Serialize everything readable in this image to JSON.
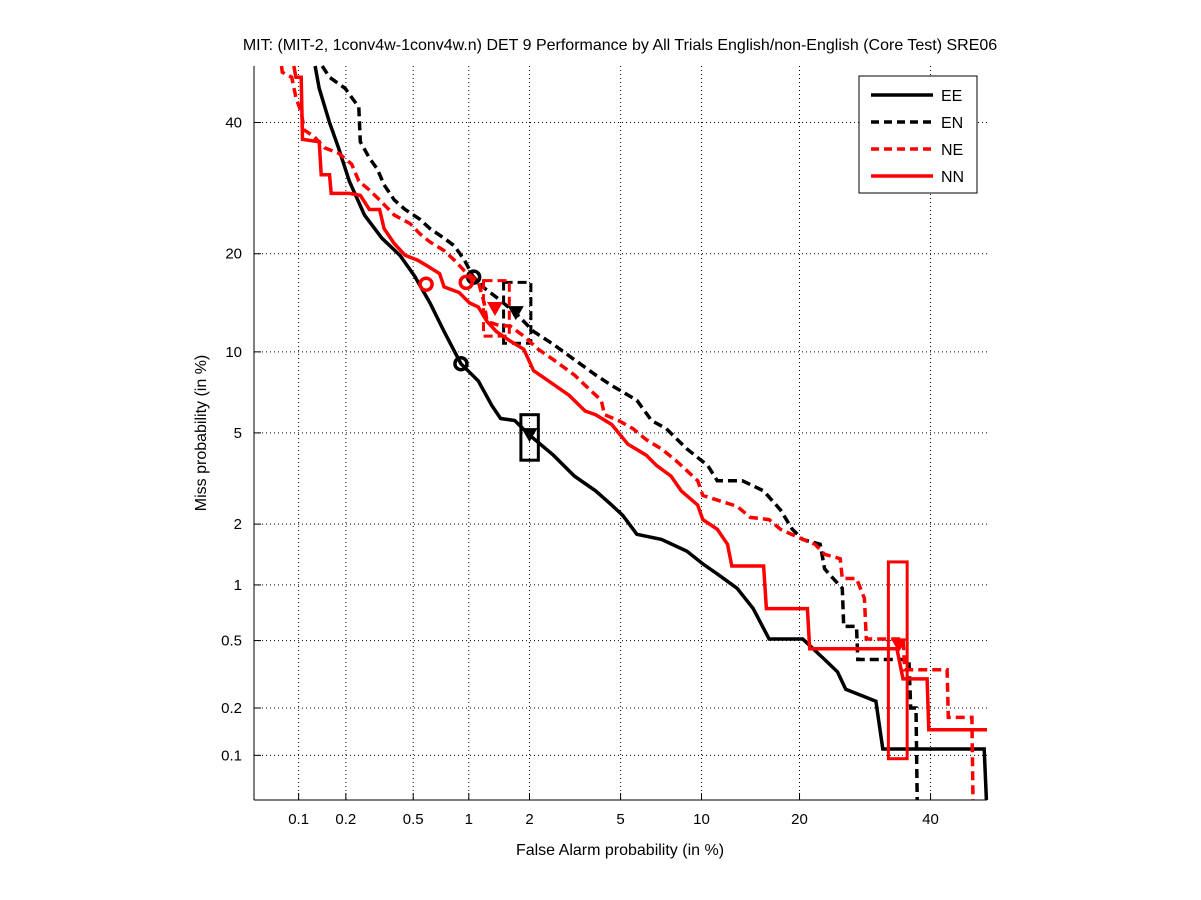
{
  "chart_data": {
    "type": "line",
    "title": "MIT: (MIT-2, 1conv4w-1conv4w.n) DET 9 Performance by All Trials English/non-English (Core Test) SRE06",
    "xlabel": "False Alarm probability (in %)",
    "ylabel": "Miss probability (in %)",
    "xscale": "probit",
    "yscale": "probit",
    "xlim": [
      0.05,
      50
    ],
    "ylim": [
      0.05,
      50
    ],
    "xticks": [
      0.1,
      0.2,
      0.5,
      1,
      2,
      5,
      10,
      20,
      40
    ],
    "xtick_labels": [
      "0.1",
      "0.2",
      "0.5",
      "1",
      "2",
      "5",
      "10",
      "20",
      "40"
    ],
    "yticks": [
      0.1,
      0.2,
      0.5,
      1,
      2,
      5,
      10,
      20,
      40
    ],
    "ytick_labels": [
      "0.1",
      "0.2",
      "0.5",
      "1",
      "2",
      "5",
      "10",
      "20",
      "40"
    ],
    "grid": true,
    "legend_position": "top-right",
    "series": [
      {
        "name": "EE",
        "color": "#000000",
        "dashed": false,
        "points": [
          [
            0.128,
            50
          ],
          [
            0.136,
            46
          ],
          [
            0.158,
            40
          ],
          [
            0.18,
            35.7
          ],
          [
            0.21,
            30.3
          ],
          [
            0.26,
            25.2
          ],
          [
            0.33,
            22
          ],
          [
            0.42,
            19.8
          ],
          [
            0.51,
            17.3
          ],
          [
            0.62,
            14.4
          ],
          [
            0.74,
            11.7
          ],
          [
            0.91,
            9.1
          ],
          [
            1.12,
            7.9
          ],
          [
            1.31,
            6.4
          ],
          [
            1.45,
            5.7
          ],
          [
            1.7,
            5.6
          ],
          [
            2,
            4.9
          ],
          [
            2.58,
            4.05
          ],
          [
            3.2,
            3.3
          ],
          [
            3.95,
            2.84
          ],
          [
            4.6,
            2.45
          ],
          [
            5.1,
            2.2
          ],
          [
            5.8,
            1.79
          ],
          [
            7.2,
            1.69
          ],
          [
            8.9,
            1.48
          ],
          [
            10.1,
            1.28
          ],
          [
            11.3,
            1.14
          ],
          [
            13.1,
            0.96
          ],
          [
            14.7,
            0.75
          ],
          [
            16.4,
            0.51
          ],
          [
            20.4,
            0.51
          ],
          [
            23.3,
            0.39
          ],
          [
            25.1,
            0.33
          ],
          [
            26.3,
            0.26
          ],
          [
            30.9,
            0.22
          ],
          [
            32,
            0.11
          ],
          [
            49.5,
            0.11
          ],
          [
            49.9,
            0.05
          ]
        ],
        "min_dcf": [
          0.91,
          9.1
        ],
        "act_dcf": [
          2.0,
          4.9
        ],
        "conf_box": {
          "x": [
            1.82,
            2.2
          ],
          "y": [
            3.86,
            5.9
          ]
        }
      },
      {
        "name": "EN",
        "color": "#000000",
        "dashed": true,
        "points": [
          [
            0.142,
            50
          ],
          [
            0.158,
            48
          ],
          [
            0.198,
            46
          ],
          [
            0.217,
            44.4
          ],
          [
            0.24,
            42.7
          ],
          [
            0.245,
            36.7
          ],
          [
            0.278,
            34
          ],
          [
            0.31,
            32.2
          ],
          [
            0.34,
            29.7
          ],
          [
            0.39,
            27.4
          ],
          [
            0.45,
            26
          ],
          [
            0.545,
            24.6
          ],
          [
            0.62,
            23.3
          ],
          [
            0.74,
            22
          ],
          [
            0.84,
            21
          ],
          [
            0.95,
            19.2
          ],
          [
            1.05,
            17.3
          ],
          [
            1.18,
            16.1
          ],
          [
            1.38,
            15
          ],
          [
            1.7,
            13.5
          ],
          [
            2.09,
            11.7
          ],
          [
            2.58,
            10.6
          ],
          [
            3.2,
            9.4
          ],
          [
            3.95,
            8.3
          ],
          [
            4.6,
            7.6
          ],
          [
            5.8,
            6.7
          ],
          [
            6.6,
            5.6
          ],
          [
            7.5,
            5.2
          ],
          [
            8.9,
            4.3
          ],
          [
            10.5,
            3.66
          ],
          [
            11.3,
            3.15
          ],
          [
            13.6,
            3.15
          ],
          [
            15.8,
            2.84
          ],
          [
            17.7,
            2.33
          ],
          [
            19.1,
            1.89
          ],
          [
            20.4,
            1.69
          ],
          [
            22.7,
            1.6
          ],
          [
            23.3,
            1.21
          ],
          [
            24.5,
            1.08
          ],
          [
            25.8,
            0.96
          ],
          [
            26,
            0.6
          ],
          [
            27.9,
            0.6
          ],
          [
            28.1,
            0.39
          ],
          [
            36.3,
            0.39
          ],
          [
            36.6,
            0.2
          ],
          [
            37.5,
            0.2
          ],
          [
            37.7,
            0.05
          ]
        ],
        "min_dcf": [
          1.06,
          17.2
        ],
        "act_dcf": [
          1.72,
          13.4
        ],
        "conf_box": {
          "x": [
            1.5,
            2.03
          ],
          "y": [
            10.7,
            16.6
          ]
        }
      },
      {
        "name": "NE",
        "color": "#ff0000",
        "dashed": true,
        "points": [
          [
            0.077,
            50
          ],
          [
            0.078,
            48.9
          ],
          [
            0.09,
            48
          ],
          [
            0.096,
            44.4
          ],
          [
            0.101,
            42.7
          ],
          [
            0.104,
            41.8
          ],
          [
            0.109,
            38.7
          ],
          [
            0.126,
            37.6
          ],
          [
            0.147,
            35.7
          ],
          [
            0.18,
            34.8
          ],
          [
            0.217,
            33
          ],
          [
            0.24,
            30.3
          ],
          [
            0.278,
            28.9
          ],
          [
            0.32,
            27.4
          ],
          [
            0.39,
            25.2
          ],
          [
            0.48,
            24
          ],
          [
            0.545,
            22.6
          ],
          [
            0.62,
            21.5
          ],
          [
            0.74,
            20.4
          ],
          [
            0.84,
            19.2
          ],
          [
            0.95,
            17.9
          ],
          [
            1.12,
            16.7
          ],
          [
            1.2,
            14.4
          ],
          [
            1.24,
            12.6
          ],
          [
            1.45,
            12.2
          ],
          [
            1.61,
            12.2
          ],
          [
            1.88,
            11.3
          ],
          [
            2.2,
            10.2
          ],
          [
            2.58,
            9.4
          ],
          [
            3.2,
            8.3
          ],
          [
            3.75,
            7.3
          ],
          [
            4.17,
            6.7
          ],
          [
            4.3,
            5.9
          ],
          [
            4.9,
            5.6
          ],
          [
            5.6,
            5.2
          ],
          [
            6.3,
            4.7
          ],
          [
            7.2,
            4.3
          ],
          [
            8.1,
            3.86
          ],
          [
            8.9,
            3.48
          ],
          [
            9.7,
            3.15
          ],
          [
            10.1,
            2.71
          ],
          [
            13.1,
            2.42
          ],
          [
            14.4,
            2.15
          ],
          [
            16.4,
            2.1
          ],
          [
            17.7,
            1.89
          ],
          [
            20.4,
            1.69
          ],
          [
            22.0,
            1.6
          ],
          [
            23.3,
            1.43
          ],
          [
            25.5,
            1.36
          ],
          [
            25.8,
            1.08
          ],
          [
            27.9,
            1.08
          ],
          [
            29.1,
            0.85
          ],
          [
            29.4,
            0.51
          ],
          [
            35.3,
            0.51
          ],
          [
            35.6,
            0.34
          ],
          [
            42.9,
            0.34
          ],
          [
            43.1,
            0.175
          ],
          [
            47.3,
            0.175
          ],
          [
            47.5,
            0.05
          ]
        ],
        "min_dcf": [
          0.97,
          16.6
        ],
        "act_dcf": [
          1.36,
          13.8
        ],
        "conf_box": {
          "x": [
            1.19,
            1.6
          ],
          "y": [
            11.3,
            16.8
          ]
        }
      },
      {
        "name": "NN",
        "color": "#ff0000",
        "dashed": false,
        "points": [
          [
            0.093,
            50
          ],
          [
            0.096,
            48
          ],
          [
            0.104,
            48
          ],
          [
            0.106,
            37.1
          ],
          [
            0.136,
            36.7
          ],
          [
            0.14,
            31.3
          ],
          [
            0.158,
            31.3
          ],
          [
            0.162,
            28.4
          ],
          [
            0.21,
            28.4
          ],
          [
            0.245,
            28.1
          ],
          [
            0.278,
            26
          ],
          [
            0.32,
            26
          ],
          [
            0.34,
            23.3
          ],
          [
            0.39,
            21.3
          ],
          [
            0.45,
            19.8
          ],
          [
            0.53,
            19.2
          ],
          [
            0.6,
            18.5
          ],
          [
            0.7,
            17.6
          ],
          [
            0.74,
            16.1
          ],
          [
            0.89,
            15.5
          ],
          [
            1.01,
            14.4
          ],
          [
            1.12,
            14
          ],
          [
            1.24,
            12.6
          ],
          [
            1.38,
            11.7
          ],
          [
            1.61,
            10.9
          ],
          [
            1.88,
            10.2
          ],
          [
            2.09,
            8.6
          ],
          [
            2.45,
            7.9
          ],
          [
            3.03,
            7
          ],
          [
            3.56,
            6.1
          ],
          [
            3.95,
            5.9
          ],
          [
            4.6,
            5.4
          ],
          [
            5.35,
            4.5
          ],
          [
            6.3,
            4.05
          ],
          [
            6.9,
            3.66
          ],
          [
            7.8,
            3.3
          ],
          [
            8.5,
            2.84
          ],
          [
            9.7,
            2.45
          ],
          [
            10.1,
            2.1
          ],
          [
            11.3,
            1.89
          ],
          [
            12.2,
            1.6
          ],
          [
            12.6,
            1.25
          ],
          [
            15.8,
            1.25
          ],
          [
            16.1,
            0.75
          ],
          [
            21,
            0.75
          ],
          [
            21.3,
            0.45
          ],
          [
            34.3,
            0.45
          ],
          [
            35.3,
            0.3
          ],
          [
            39.4,
            0.3
          ],
          [
            39.7,
            0.146
          ],
          [
            50,
            0.146
          ]
        ],
        "min_dcf": [
          0.59,
          16.4
        ],
        "act_dcf": [
          34.6,
          0.47
        ],
        "conf_box": {
          "x": [
            32.9,
            36
          ],
          "y": [
            0.095,
            1.31
          ]
        }
      }
    ]
  }
}
